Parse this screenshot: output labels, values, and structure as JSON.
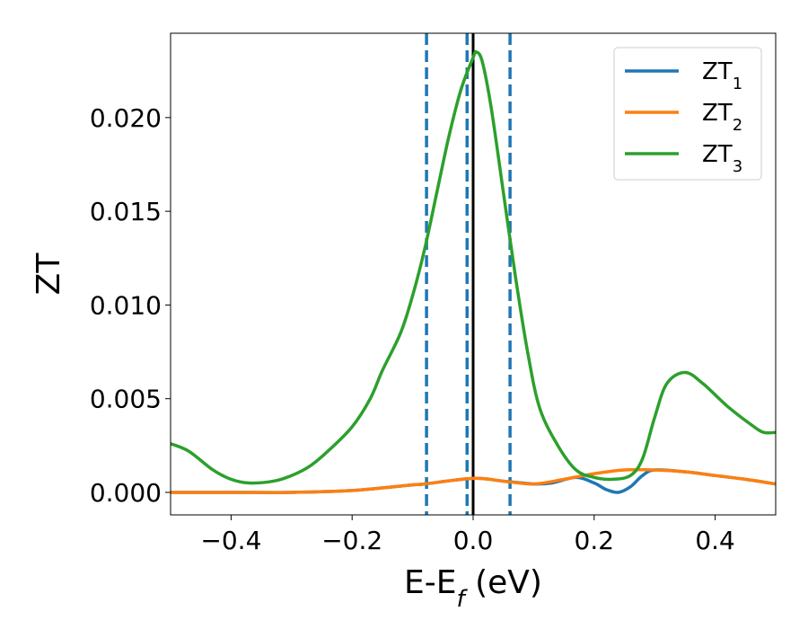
{
  "chart_data": {
    "type": "line",
    "xlabel": "E-E",
    "xlabel_sub": "f",
    "xlabel_unit": " (eV)",
    "ylabel": "ZT",
    "xlim": [
      -0.5,
      0.5
    ],
    "ylim": [
      -0.0012,
      0.0245
    ],
    "x_ticks": [
      -0.4,
      -0.2,
      0.0,
      0.2,
      0.4
    ],
    "x_tick_labels": [
      "−0.4",
      "−0.2",
      "0.0",
      "0.2",
      "0.4"
    ],
    "y_ticks": [
      0.0,
      0.005,
      0.01,
      0.015,
      0.02
    ],
    "y_tick_labels": [
      "0.000",
      "0.005",
      "0.010",
      "0.015",
      "0.020"
    ],
    "grid": false,
    "legend_position": "top-right",
    "vertical_lines": [
      {
        "x": -0.077,
        "style": "dashed",
        "color": "#1f77b4"
      },
      {
        "x": -0.01,
        "style": "dashed",
        "color": "#1f77b4"
      },
      {
        "x": 0.0,
        "style": "solid",
        "color": "#000000"
      },
      {
        "x": 0.061,
        "style": "dashed",
        "color": "#1f77b4"
      }
    ],
    "series": [
      {
        "name": "ZT",
        "name_sub": "1",
        "color": "#1f77b4",
        "points": [
          [
            -0.5,
            0.0
          ],
          [
            -0.4,
            0.0
          ],
          [
            -0.3,
            0.0
          ],
          [
            -0.2,
            0.0001
          ],
          [
            -0.1,
            0.0004
          ],
          [
            -0.08,
            0.00045
          ],
          [
            0.0,
            0.00075
          ],
          [
            0.05,
            0.0006
          ],
          [
            0.1,
            0.00045
          ],
          [
            0.13,
            0.0005
          ],
          [
            0.17,
            0.0008
          ],
          [
            0.2,
            0.0005
          ],
          [
            0.22,
            0.00015
          ],
          [
            0.24,
            0.0
          ],
          [
            0.26,
            0.0003
          ],
          [
            0.28,
            0.0009
          ],
          [
            0.3,
            0.0012
          ],
          [
            0.35,
            0.0011
          ],
          [
            0.4,
            0.0009
          ],
          [
            0.45,
            0.0007
          ],
          [
            0.5,
            0.00045
          ]
        ]
      },
      {
        "name": "ZT",
        "name_sub": "2",
        "color": "#ff7f0e",
        "points": [
          [
            -0.5,
            0.0
          ],
          [
            -0.4,
            0.0
          ],
          [
            -0.3,
            0.0
          ],
          [
            -0.2,
            0.0001
          ],
          [
            -0.1,
            0.0004
          ],
          [
            -0.08,
            0.00045
          ],
          [
            0.0,
            0.00075
          ],
          [
            0.05,
            0.0006
          ],
          [
            0.1,
            0.00045
          ],
          [
            0.15,
            0.0007
          ],
          [
            0.2,
            0.001
          ],
          [
            0.25,
            0.0012
          ],
          [
            0.3,
            0.0012
          ],
          [
            0.35,
            0.0011
          ],
          [
            0.4,
            0.0009
          ],
          [
            0.45,
            0.0007
          ],
          [
            0.5,
            0.00045
          ]
        ]
      },
      {
        "name": "ZT",
        "name_sub": "3",
        "color": "#2ca02c",
        "points": [
          [
            -0.5,
            0.0026
          ],
          [
            -0.47,
            0.0022
          ],
          [
            -0.43,
            0.0012
          ],
          [
            -0.4,
            0.0007
          ],
          [
            -0.37,
            0.0005
          ],
          [
            -0.33,
            0.0006
          ],
          [
            -0.3,
            0.0009
          ],
          [
            -0.27,
            0.0014
          ],
          [
            -0.24,
            0.0022
          ],
          [
            -0.2,
            0.0035
          ],
          [
            -0.17,
            0.005
          ],
          [
            -0.15,
            0.0065
          ],
          [
            -0.12,
            0.0085
          ],
          [
            -0.1,
            0.0105
          ],
          [
            -0.08,
            0.013
          ],
          [
            -0.06,
            0.016
          ],
          [
            -0.04,
            0.019
          ],
          [
            -0.02,
            0.0215
          ],
          [
            0.0,
            0.0232
          ],
          [
            0.005,
            0.0235
          ],
          [
            0.015,
            0.023
          ],
          [
            0.03,
            0.0205
          ],
          [
            0.05,
            0.016
          ],
          [
            0.07,
            0.0115
          ],
          [
            0.09,
            0.0075
          ],
          [
            0.11,
            0.0045
          ],
          [
            0.14,
            0.0025
          ],
          [
            0.17,
            0.0012
          ],
          [
            0.2,
            0.0008
          ],
          [
            0.23,
            0.0007
          ],
          [
            0.26,
            0.0009
          ],
          [
            0.28,
            0.0018
          ],
          [
            0.3,
            0.004
          ],
          [
            0.32,
            0.0058
          ],
          [
            0.35,
            0.0064
          ],
          [
            0.38,
            0.0058
          ],
          [
            0.42,
            0.0046
          ],
          [
            0.46,
            0.0036
          ],
          [
            0.48,
            0.0032
          ],
          [
            0.5,
            0.0032
          ]
        ]
      }
    ]
  }
}
